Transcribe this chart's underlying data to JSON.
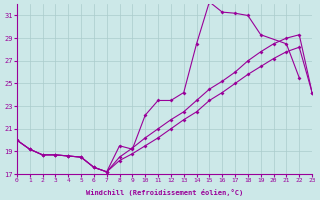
{
  "xlabel": "Windchill (Refroidissement éolien,°C)",
  "bg_color": "#cce8e8",
  "line_color": "#990099",
  "grid_color": "#aacccc",
  "xlim": [
    0,
    23
  ],
  "ylim": [
    17,
    32
  ],
  "yticks": [
    17,
    19,
    21,
    23,
    25,
    27,
    29,
    31
  ],
  "xticks": [
    0,
    1,
    2,
    3,
    4,
    5,
    6,
    7,
    8,
    9,
    10,
    11,
    12,
    13,
    14,
    15,
    16,
    17,
    18,
    19,
    20,
    21,
    22,
    23
  ],
  "series1_x": [
    0,
    1,
    2,
    3,
    4,
    5,
    6,
    7,
    8,
    9,
    10,
    11,
    12,
    13,
    14,
    15,
    16,
    17,
    18,
    19,
    21,
    22
  ],
  "series1_y": [
    20.0,
    19.2,
    18.7,
    18.7,
    18.6,
    18.5,
    17.6,
    17.2,
    19.5,
    19.2,
    22.2,
    23.5,
    23.5,
    24.2,
    28.5,
    32.2,
    31.3,
    31.2,
    31.0,
    29.3,
    28.5,
    25.5
  ],
  "series2_x": [
    0,
    1,
    2,
    3,
    4,
    5,
    6,
    7,
    8,
    9,
    10,
    11,
    12,
    13,
    14,
    15,
    16,
    17,
    18,
    19,
    20,
    21,
    22,
    23
  ],
  "series2_y": [
    20.0,
    19.2,
    18.7,
    18.7,
    18.6,
    18.5,
    17.6,
    17.2,
    18.5,
    19.3,
    20.2,
    21.0,
    21.8,
    22.5,
    23.5,
    24.5,
    25.2,
    26.0,
    27.0,
    27.8,
    28.5,
    29.0,
    29.3,
    24.2
  ],
  "series3_x": [
    0,
    1,
    2,
    3,
    4,
    5,
    6,
    7,
    8,
    9,
    10,
    11,
    12,
    13,
    14,
    15,
    16,
    17,
    18,
    19,
    20,
    21,
    22,
    23
  ],
  "series3_y": [
    20.0,
    19.2,
    18.7,
    18.7,
    18.6,
    18.5,
    17.6,
    17.2,
    18.2,
    18.8,
    19.5,
    20.2,
    21.0,
    21.8,
    22.5,
    23.5,
    24.2,
    25.0,
    25.8,
    26.5,
    27.2,
    27.8,
    28.2,
    24.2
  ]
}
